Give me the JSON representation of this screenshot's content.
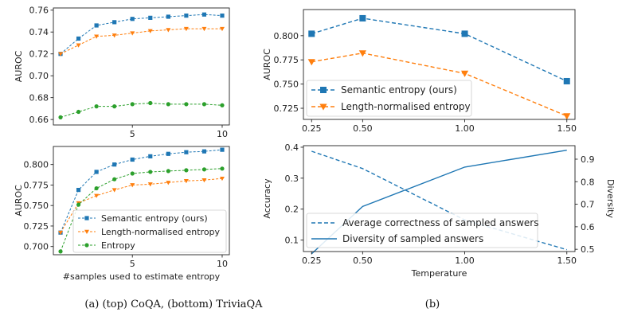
{
  "colors": {
    "semantic": "#1f77b4",
    "length": "#ff7f0e",
    "entropy": "#2ca02c"
  },
  "captions": {
    "a": "(a) (top) CoQA, (bottom) TriviaQA",
    "b": "(b)"
  },
  "chart_data": [
    {
      "id": "coqa",
      "type": "line",
      "ylabel": "AUROC",
      "xlabel": "",
      "x": [
        1,
        2,
        3,
        4,
        5,
        6,
        7,
        8,
        9,
        10
      ],
      "xlim": [
        0.6,
        10.4
      ],
      "ylim": [
        0.655,
        0.762
      ],
      "xticks": [
        5,
        10
      ],
      "yticks": [
        0.66,
        0.68,
        0.7,
        0.72,
        0.74,
        0.76
      ],
      "yticklabels": [
        "0.66",
        "0.68",
        "0.70",
        "0.72",
        "0.74",
        "0.76"
      ],
      "series": [
        {
          "key": "semantic",
          "marker": "square",
          "values": [
            0.72,
            0.734,
            0.746,
            0.749,
            0.752,
            0.753,
            0.754,
            0.755,
            0.756,
            0.755
          ]
        },
        {
          "key": "length",
          "marker": "triangle",
          "values": [
            0.72,
            0.728,
            0.736,
            0.737,
            0.739,
            0.741,
            0.742,
            0.743,
            0.743,
            0.743
          ]
        },
        {
          "key": "entropy",
          "marker": "circle",
          "values": [
            0.662,
            0.667,
            0.672,
            0.672,
            0.674,
            0.675,
            0.674,
            0.674,
            0.674,
            0.673
          ]
        }
      ]
    },
    {
      "id": "triviaqa",
      "type": "line",
      "ylabel": "AUROC",
      "xlabel": "#samples used to estimate entropy",
      "x": [
        1,
        2,
        3,
        4,
        5,
        6,
        7,
        8,
        9,
        10
      ],
      "xlim": [
        0.6,
        10.4
      ],
      "ylim": [
        0.69,
        0.822
      ],
      "xticks": [
        5,
        10
      ],
      "yticks": [
        0.7,
        0.725,
        0.75,
        0.775,
        0.8
      ],
      "yticklabels": [
        "0.700",
        "0.725",
        "0.750",
        "0.775",
        "0.800"
      ],
      "legend": "lower-right",
      "series": [
        {
          "key": "semantic",
          "name": "Semantic entropy (ours)",
          "marker": "square",
          "values": [
            0.717,
            0.769,
            0.791,
            0.8,
            0.806,
            0.81,
            0.813,
            0.815,
            0.816,
            0.818
          ]
        },
        {
          "key": "length",
          "name": "Length-normalised entropy",
          "marker": "triangle",
          "values": [
            0.717,
            0.753,
            0.762,
            0.769,
            0.775,
            0.776,
            0.778,
            0.78,
            0.781,
            0.783
          ]
        },
        {
          "key": "entropy",
          "name": "Entropy",
          "marker": "circle",
          "values": [
            0.694,
            0.751,
            0.771,
            0.782,
            0.789,
            0.791,
            0.792,
            0.793,
            0.794,
            0.795
          ]
        }
      ]
    },
    {
      "id": "temp-auroc",
      "type": "line",
      "ylabel": "AUROC",
      "xlabel": "",
      "x": [
        0.25,
        0.5,
        1.0,
        1.5
      ],
      "xlim": [
        0.21,
        1.54
      ],
      "ylim": [
        0.7135,
        0.827
      ],
      "xticks": [
        0.25,
        0.5,
        1.0,
        1.5
      ],
      "xticklabels": [
        "0.25",
        "0.50",
        "1.00",
        "1.50"
      ],
      "yticks": [
        0.725,
        0.75,
        0.775,
        0.8
      ],
      "yticklabels": [
        "0.725",
        "0.750",
        "0.775",
        "0.800"
      ],
      "legend": "lower-left",
      "series": [
        {
          "key": "semantic",
          "name": "Semantic entropy (ours)",
          "marker": "square",
          "values": [
            0.802,
            0.818,
            0.802,
            0.753
          ]
        },
        {
          "key": "length",
          "name": "Length-normalised entropy",
          "marker": "triangle",
          "values": [
            0.773,
            0.782,
            0.761,
            0.717
          ]
        }
      ]
    },
    {
      "id": "temp-acc-div",
      "type": "line",
      "xlabel": "Temperature",
      "ylabel": "Accuracy",
      "ylabel_right": "Diversity",
      "x": [
        0.25,
        0.5,
        1.0,
        1.5
      ],
      "xlim": [
        0.21,
        1.54
      ],
      "ylim": [
        0.063,
        0.405
      ],
      "ylim_right": [
        0.49,
        0.96
      ],
      "xticks": [
        0.25,
        0.5,
        1.0,
        1.5
      ],
      "xticklabels": [
        "0.25",
        "0.50",
        "1.00",
        "1.50"
      ],
      "yticks": [
        0.1,
        0.2,
        0.3,
        0.4
      ],
      "yticklabels": [
        "0.1",
        "0.2",
        "0.3",
        "0.4"
      ],
      "yticks_right": [
        0.5,
        0.6,
        0.7,
        0.8,
        0.9
      ],
      "yticklabels_right": [
        "0.5",
        "0.6",
        "0.7",
        "0.8",
        "0.9"
      ],
      "legend": "lower-left",
      "series": [
        {
          "key": "accuracy",
          "name": "Average correctness of sampled answers",
          "axis": "left",
          "dash": true,
          "values": [
            0.387,
            0.331,
            0.165,
            0.069
          ]
        },
        {
          "key": "diversity",
          "name": "Diversity of sampled answers",
          "axis": "right",
          "dash": false,
          "values": [
            0.48,
            0.69,
            0.865,
            0.94
          ]
        }
      ]
    }
  ]
}
